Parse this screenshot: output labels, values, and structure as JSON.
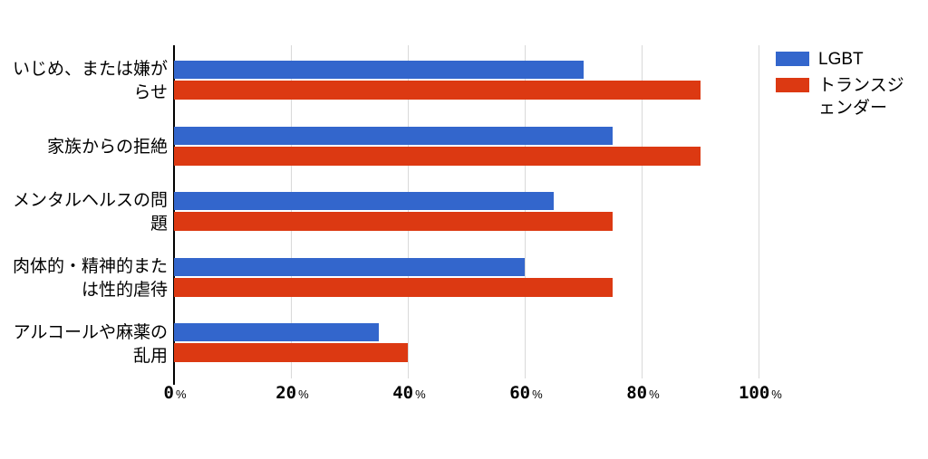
{
  "chart_data": {
    "type": "bar",
    "orientation": "horizontal",
    "title": "",
    "categories": [
      "いじめ、または嫌がらせ",
      "家族からの拒絶",
      "メンタルヘルスの問題",
      "肉体的・精神的または性的虐待",
      "アルコールや麻薬の乱用"
    ],
    "series": [
      {
        "name": "LGBT",
        "color": "#3366cc",
        "values": [
          70,
          75,
          65,
          60,
          35
        ]
      },
      {
        "name": "トランスジェンダー",
        "color": "#dc3912",
        "values": [
          90,
          90,
          75,
          75,
          40
        ]
      }
    ],
    "x_ticks": [
      "0",
      "20",
      "40",
      "60",
      "80",
      "100"
    ],
    "x_unit": "%",
    "xlim": [
      0,
      100
    ],
    "grid": true,
    "gridline_color": "#d9d9d9",
    "axis_color": "#000000",
    "background": "#ffffff",
    "legend_position": "right"
  }
}
